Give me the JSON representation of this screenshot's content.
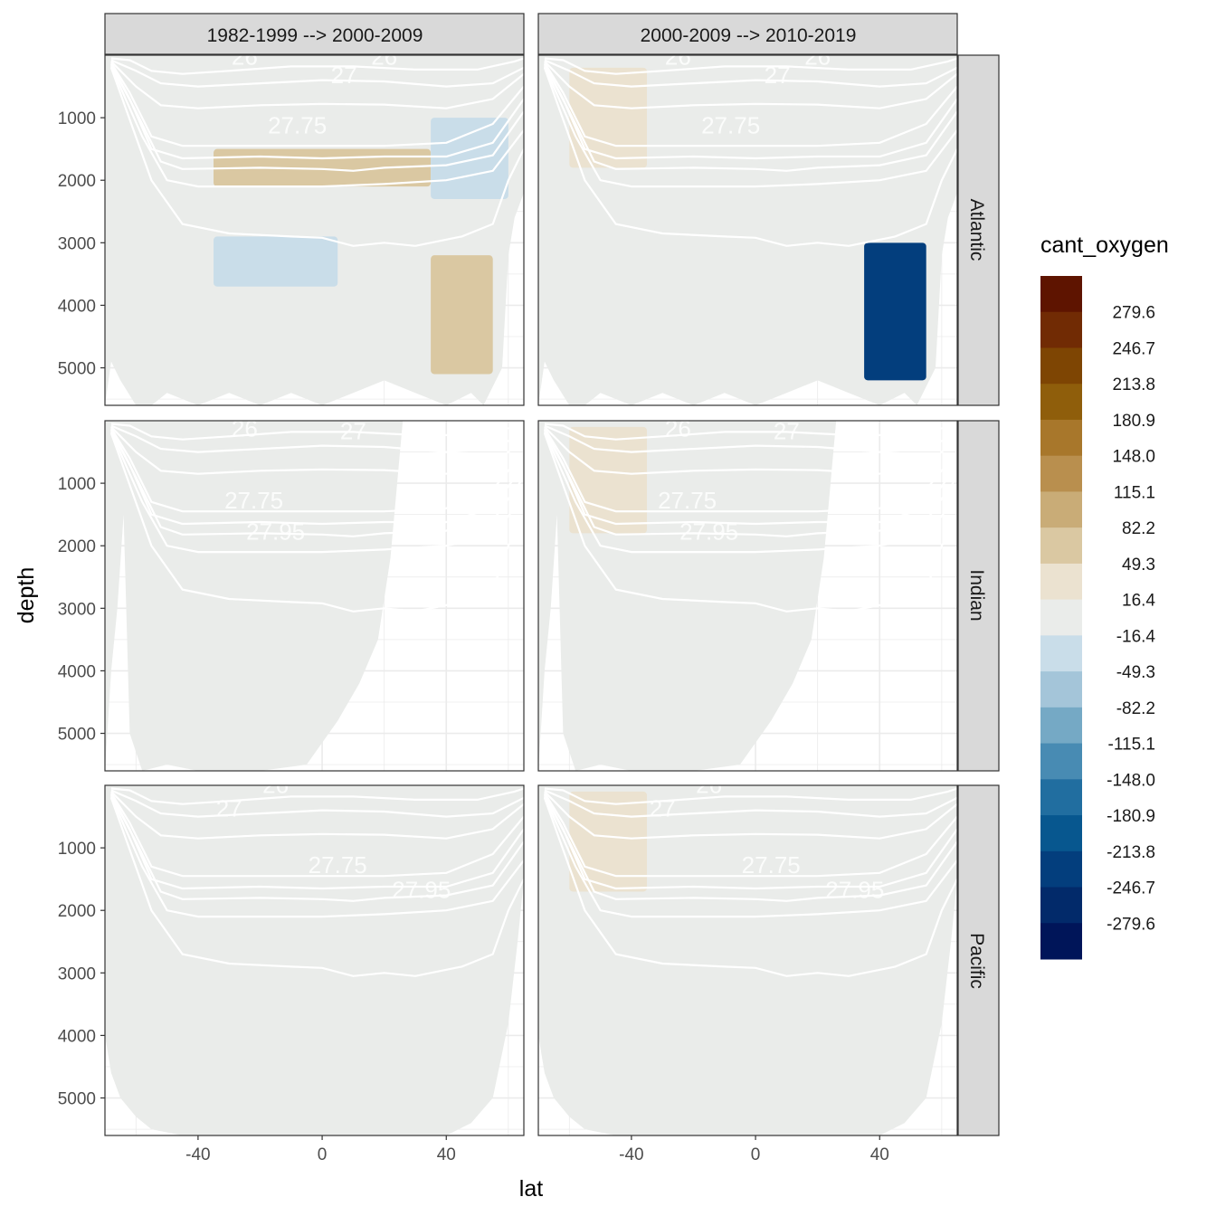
{
  "chart_data": {
    "type": "heatmap",
    "facet_columns": [
      "1982-1999 --> 2000-2009",
      "2000-2009 --> 2010-2019"
    ],
    "facet_rows": [
      "Atlantic",
      "Indian",
      "Pacific"
    ],
    "xlabel": "lat",
    "ylabel": "depth",
    "x_ticks": [
      "-40",
      "0",
      "40"
    ],
    "y_ticks": [
      "1000",
      "2000",
      "3000",
      "4000",
      "5000"
    ],
    "xlim": [
      -70,
      65
    ],
    "ylim": [
      5600,
      0
    ],
    "y_reversed": true,
    "grid": true,
    "contour_labels": {
      "Atlantic": [
        "26",
        "26",
        "27",
        "27.75"
      ],
      "Indian": [
        "26",
        "27",
        "27.75",
        "27.95"
      ],
      "Pacific": [
        "26",
        "27",
        "27.75",
        "27.95"
      ]
    },
    "legend": {
      "title": "cant_oxygen",
      "labels": [
        "279.6",
        "246.7",
        "213.8",
        "180.9",
        "148.0",
        "115.1",
        "82.2",
        "49.3",
        "16.4",
        "-16.4",
        "-49.3",
        "-82.2",
        "-115.1",
        "-148.0",
        "-180.9",
        "-213.8",
        "-246.7",
        "-279.6"
      ],
      "colors": [
        "#5e1400",
        "#712b04",
        "#7e4503",
        "#8f5e0b",
        "#a8772b",
        "#b98f4e",
        "#c9ac77",
        "#dac8a2",
        "#ebe2d0",
        "#eaecea",
        "#c9dde9",
        "#a4c5d9",
        "#75a9c5",
        "#488bb3",
        "#216ea0",
        "#07578f",
        "#033e7d",
        "#022a6a",
        "#001559"
      ]
    },
    "anomalies": [
      {
        "panel": "Atlantic|1982-1999 --> 2000-2009",
        "lat": [
          -35,
          35
        ],
        "depth": [
          1500,
          2100
        ],
        "class": "49.3 to 82.2"
      },
      {
        "panel": "Atlantic|1982-1999 --> 2000-2009",
        "lat": [
          35,
          60
        ],
        "depth": [
          1000,
          2300
        ],
        "class": "-49.3 to -16.4"
      },
      {
        "panel": "Atlantic|1982-1999 --> 2000-2009",
        "lat": [
          -35,
          5
        ],
        "depth": [
          2900,
          3700
        ],
        "class": "-49.3 to -16.4"
      },
      {
        "panel": "Atlantic|1982-1999 --> 2000-2009",
        "lat": [
          35,
          55
        ],
        "depth": [
          3200,
          5100
        ],
        "class": "49.3 to 82.2"
      },
      {
        "panel": "Atlantic|2000-2009 --> 2010-2019",
        "lat": [
          -60,
          -35
        ],
        "depth": [
          200,
          1800
        ],
        "class": "16.4 to 49.3"
      },
      {
        "panel": "Atlantic|2000-2009 --> 2010-2019",
        "lat": [
          35,
          55
        ],
        "depth": [
          3000,
          5200
        ],
        "class": "-279.6 to -115.1"
      },
      {
        "panel": "Indian|2000-2009 --> 2010-2019",
        "lat": [
          -60,
          -35
        ],
        "depth": [
          100,
          1800
        ],
        "class": "16.4 to 49.3"
      },
      {
        "panel": "Pacific|2000-2009 --> 2010-2019",
        "lat": [
          -60,
          -35
        ],
        "depth": [
          100,
          1700
        ],
        "class": "16.4 to 49.3"
      }
    ]
  }
}
